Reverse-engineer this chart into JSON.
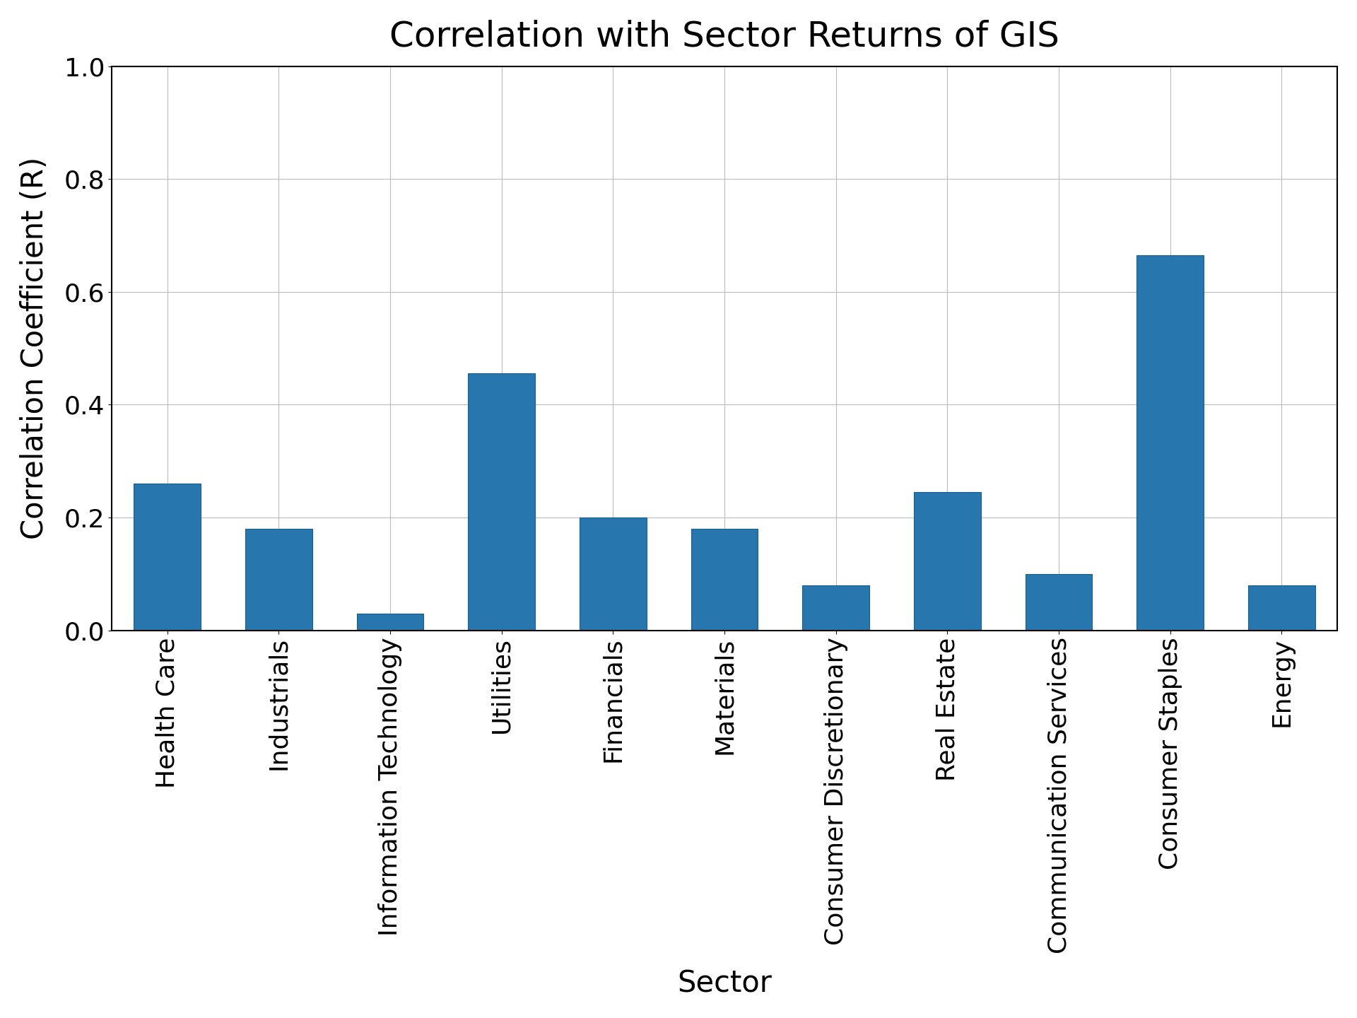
{
  "title": "Correlation with Sector Returns of GIS",
  "xlabel": "Sector",
  "ylabel": "Correlation Coefficient (R)",
  "categories": [
    "Health Care",
    "Industrials",
    "Information Technology",
    "Utilities",
    "Financials",
    "Materials",
    "Consumer Discretionary",
    "Real Estate",
    "Communication Services",
    "Consumer Staples",
    "Energy"
  ],
  "values": [
    0.26,
    0.18,
    0.03,
    0.455,
    0.2,
    0.18,
    0.08,
    0.245,
    0.1,
    0.665,
    0.08
  ],
  "bar_color": "#2776ae",
  "ylim": [
    0.0,
    1.0
  ],
  "yticks": [
    0.0,
    0.2,
    0.4,
    0.6,
    0.8,
    1.0
  ],
  "title_fontsize": 36,
  "axis_label_fontsize": 30,
  "tick_fontsize": 26,
  "xtick_fontsize": 26,
  "background_color": "#ffffff",
  "grid_color": "#bbbbbb",
  "bar_edgecolor": "#1a5e8a",
  "bar_width": 0.6,
  "xtick_rotation": 90,
  "xtick_ha": "center"
}
